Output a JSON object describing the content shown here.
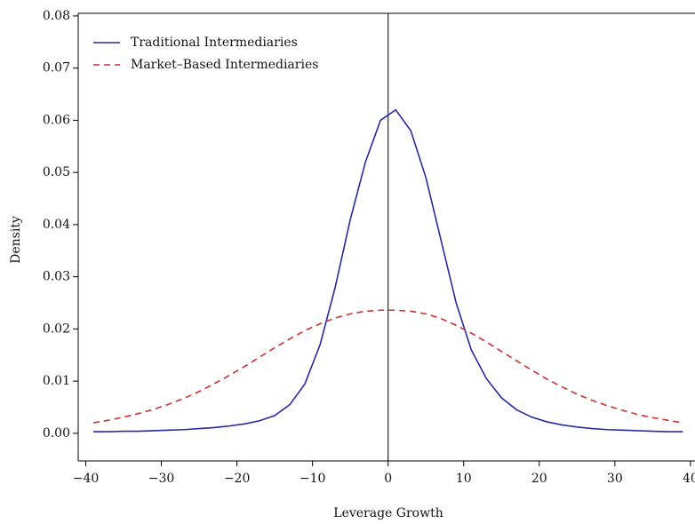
{
  "chart_data": {
    "type": "line",
    "x_label": "Leverage Growth",
    "y_label": "Density",
    "x": [
      -39,
      -37,
      -35,
      -33,
      -31,
      -29,
      -27,
      -25,
      -23,
      -21,
      -19,
      -17,
      -15,
      -13,
      -11,
      -9,
      -7,
      -5,
      -3,
      -1,
      1,
      3,
      5,
      7,
      9,
      11,
      13,
      15,
      17,
      19,
      21,
      23,
      25,
      27,
      29,
      31,
      33,
      35,
      37,
      39
    ],
    "series": [
      {
        "name": "Traditional Intermediaries",
        "color": "#2a2aa0",
        "dash": "solid",
        "values": [
          0.0003,
          0.0003,
          0.0004,
          0.0004,
          0.0005,
          0.0006,
          0.0007,
          0.0009,
          0.0011,
          0.0014,
          0.0018,
          0.0024,
          0.0034,
          0.0055,
          0.0095,
          0.017,
          0.028,
          0.041,
          0.052,
          0.06,
          0.062,
          0.058,
          0.049,
          0.037,
          0.025,
          0.016,
          0.0105,
          0.0068,
          0.0045,
          0.0031,
          0.0022,
          0.0016,
          0.0012,
          0.0009,
          0.0007,
          0.0006,
          0.0005,
          0.0004,
          0.0003,
          0.0003
        ]
      },
      {
        "name": "Market–Based Intermediaries",
        "color": "#c83232",
        "dash": "dashed",
        "values": [
          0.002,
          0.0025,
          0.0031,
          0.0038,
          0.0046,
          0.0056,
          0.0067,
          0.008,
          0.0095,
          0.0111,
          0.0128,
          0.0146,
          0.0164,
          0.0181,
          0.0197,
          0.021,
          0.0221,
          0.0229,
          0.0234,
          0.0236,
          0.0236,
          0.0234,
          0.0229,
          0.022,
          0.0207,
          0.0192,
          0.0175,
          0.0157,
          0.0139,
          0.0121,
          0.0104,
          0.0089,
          0.0075,
          0.0063,
          0.0053,
          0.0044,
          0.0036,
          0.003,
          0.0025,
          0.002
        ]
      }
    ],
    "xlim": [
      -41,
      40.6
    ],
    "ylim": [
      -0.0053,
      0.0805
    ],
    "xticks": [
      {
        "value": -40,
        "label": "−40"
      },
      {
        "value": -30,
        "label": "−30"
      },
      {
        "value": -20,
        "label": "−20"
      },
      {
        "value": -10,
        "label": "−10"
      },
      0,
      10,
      20,
      30,
      40
    ],
    "yticks": [
      {
        "value": 0,
        "label": "0.00"
      },
      0.01,
      0.02,
      0.03,
      0.04,
      0.05,
      0.06,
      0.07,
      0.08
    ],
    "vline": 0,
    "legend": "upper-left",
    "grid": false
  }
}
